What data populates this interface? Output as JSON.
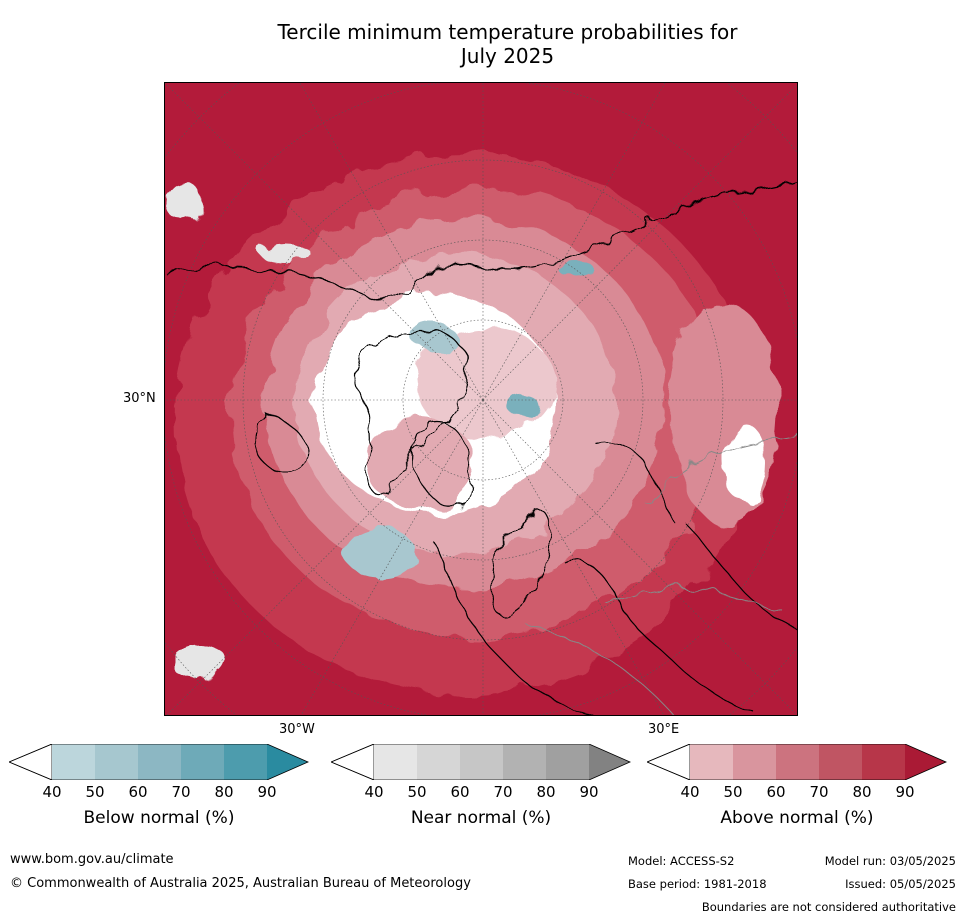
{
  "title_line1": "Tercile minimum temperature probabilities for",
  "title_line2": "July 2025",
  "map": {
    "lat_label": "30°N",
    "lon_left_label": "30°W",
    "lon_right_label": "30°E",
    "colors": {
      "above_90": "#b31b3a",
      "above_80": "#c43950",
      "above_70": "#cf5c6c",
      "above_60": "#d98a95",
      "above_50": "#e2aab2",
      "above_40": "#ecc8cd",
      "near_40": "#e6e6e6",
      "below_50": "#a8c7cf",
      "below_70": "#7ab0bc",
      "ocean_white": "#ffffff"
    }
  },
  "colorbars": [
    {
      "label": "Below normal (%)",
      "ticks": [
        "40",
        "50",
        "60",
        "70",
        "80",
        "90"
      ],
      "colors": [
        "#bcd6dc",
        "#a6c7cf",
        "#8cb7c3",
        "#6eaab8",
        "#4d9cad",
        "#2a8ba0"
      ]
    },
    {
      "label": "Near normal (%)",
      "ticks": [
        "40",
        "50",
        "60",
        "70",
        "80",
        "90"
      ],
      "colors": [
        "#e6e6e6",
        "#d6d6d6",
        "#c6c6c6",
        "#b2b2b2",
        "#a0a0a0",
        "#828282"
      ]
    },
    {
      "label": "Above normal (%)",
      "ticks": [
        "40",
        "50",
        "60",
        "70",
        "80",
        "90"
      ],
      "colors": [
        "#e6b8bd",
        "#d9959e",
        "#cc737f",
        "#c05563",
        "#b73649",
        "#aa1a35"
      ]
    }
  ],
  "footer": {
    "website": "www.bom.gov.au/climate",
    "copyright": "© Commonwealth of Australia 2025, Australian Bureau of Meteorology",
    "model": "Model: ACCESS-S2",
    "base_period": "Base period: 1981-2018",
    "model_run": "Model run: 03/05/2025",
    "issued": "Issued: 05/05/2025",
    "disclaimer": "Boundaries are not considered authoritative"
  }
}
